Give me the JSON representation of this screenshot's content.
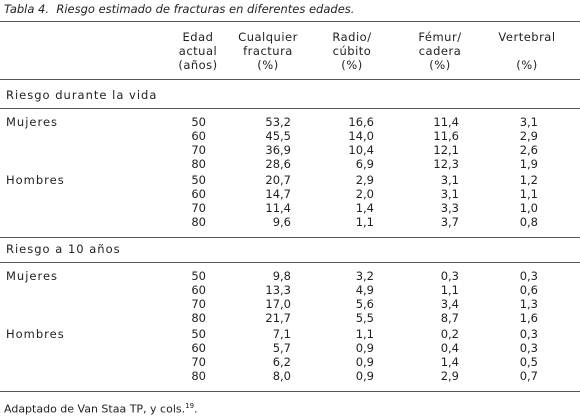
{
  "caption": {
    "label": "Tabla 4.",
    "text": "Riesgo estimado de fracturas en diferentes edades."
  },
  "table": {
    "headers": [
      [
        "Edad",
        "actual",
        "(años)"
      ],
      [
        "Cualquier",
        "fractura",
        "(%)"
      ],
      [
        "Radio/",
        "cúbito",
        "(%)"
      ],
      [
        "Fémur/",
        "cadera",
        "(%)"
      ],
      [
        "Vertebral",
        "(%)"
      ]
    ],
    "sections": [
      {
        "title": "Riesgo durante la vida",
        "groups": [
          {
            "label": "Mujeres",
            "rows": [
              [
                "50",
                "53,2",
                "16,6",
                "11,4",
                "3,1"
              ],
              [
                "60",
                "45,5",
                "14,0",
                "11,6",
                "2,9"
              ],
              [
                "70",
                "36,9",
                "10,4",
                "12,1",
                "2,6"
              ],
              [
                "80",
                "28,6",
                "6,9",
                "12,3",
                "1,9"
              ]
            ]
          },
          {
            "label": "Hombres",
            "rows": [
              [
                "50",
                "20,7",
                "2,9",
                "3,1",
                "1,2"
              ],
              [
                "60",
                "14,7",
                "2,0",
                "3,1",
                "1,1"
              ],
              [
                "70",
                "11,4",
                "1,4",
                "3,3",
                "1,0"
              ],
              [
                "80",
                "9,6",
                "1,1",
                "3,7",
                "0,8"
              ]
            ]
          }
        ]
      },
      {
        "title": "Riesgo a 10 años",
        "groups": [
          {
            "label": "Mujeres",
            "rows": [
              [
                "50",
                "9,8",
                "3,2",
                "0,3",
                "0,3"
              ],
              [
                "60",
                "13,3",
                "4,9",
                "1,1",
                "0,6"
              ],
              [
                "70",
                "17,0",
                "5,6",
                "3,4",
                "1,3"
              ],
              [
                "80",
                "21,7",
                "5,5",
                "8,7",
                "1,6"
              ]
            ]
          },
          {
            "label": "Hombres",
            "rows": [
              [
                "50",
                "7,1",
                "1,1",
                "0,2",
                "0,3"
              ],
              [
                "60",
                "5,7",
                "0,9",
                "0,4",
                "0,3"
              ],
              [
                "70",
                "6,2",
                "0,9",
                "1,4",
                "0,5"
              ],
              [
                "80",
                "8,0",
                "0,9",
                "2,9",
                "0,7"
              ]
            ]
          }
        ]
      }
    ]
  },
  "footer": {
    "text": "Adaptado de Van Staa TP, y cols.",
    "ref": "19",
    "end": "."
  }
}
